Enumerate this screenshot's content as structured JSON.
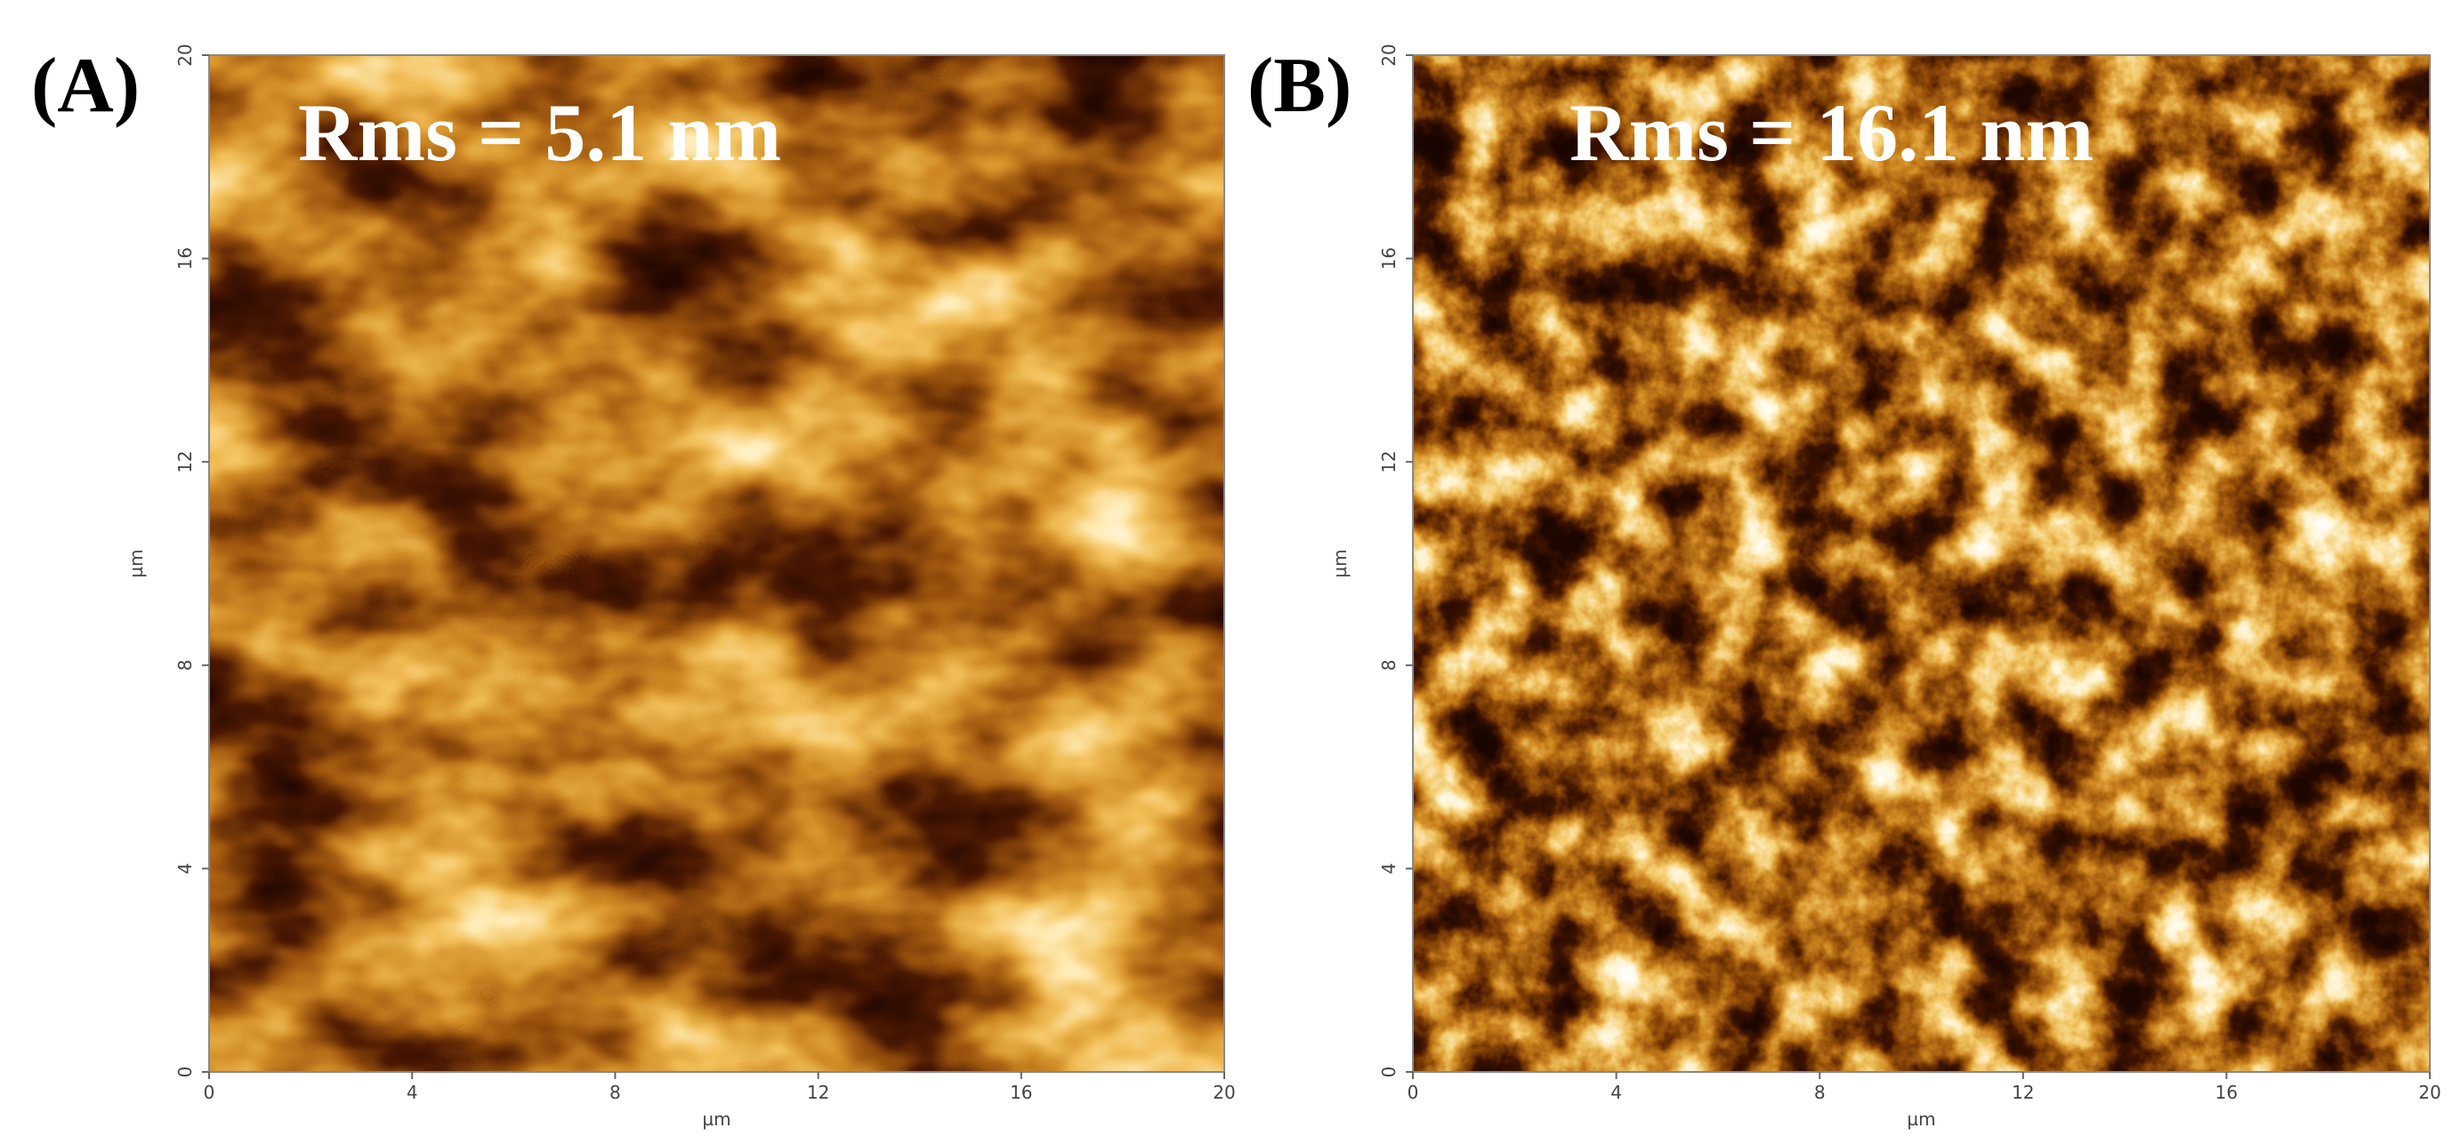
{
  "panels": [
    {
      "label": "(A)",
      "annotation": "Rms = 5.1 nm",
      "xlabel": "µm",
      "ylabel": "µm",
      "xlim": [
        0,
        20
      ],
      "ylim": [
        0,
        20
      ],
      "xticks": [
        0,
        4,
        8,
        12,
        16,
        20
      ],
      "yticks": [
        0,
        4,
        8,
        12,
        16,
        20
      ]
    },
    {
      "label": "(B)",
      "annotation": "Rms = 16.1 nm",
      "xlabel": "µm",
      "ylabel": "µm",
      "xlim": [
        0,
        20
      ],
      "ylim": [
        0,
        20
      ],
      "xticks": [
        0,
        4,
        8,
        12,
        16,
        20
      ],
      "yticks": [
        0,
        4,
        8,
        12,
        16,
        20
      ]
    }
  ]
}
